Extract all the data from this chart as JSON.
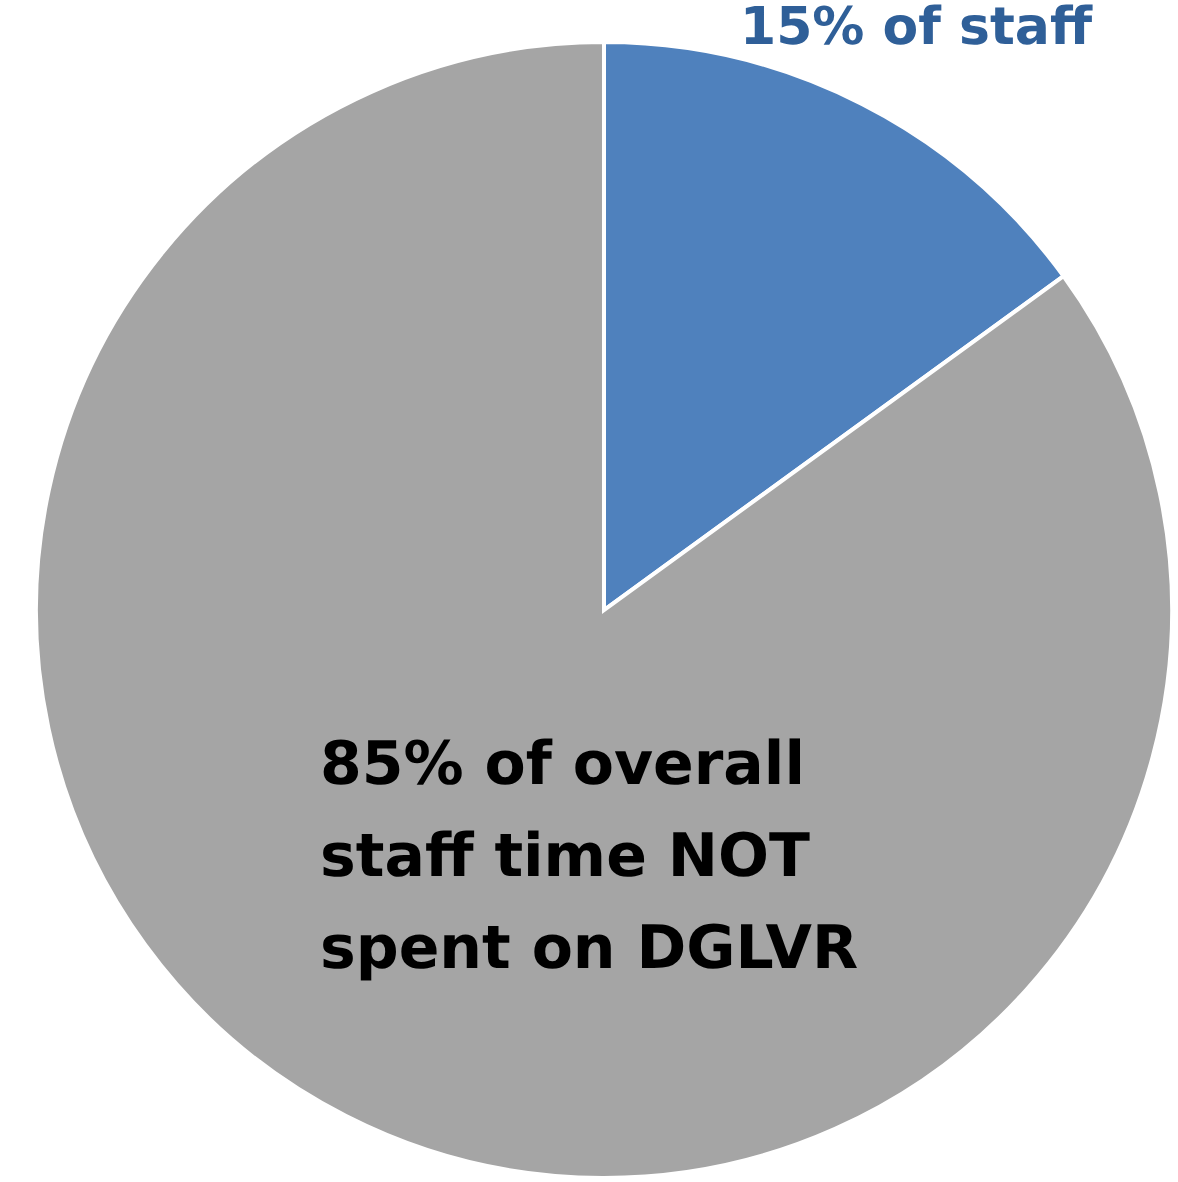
{
  "chart_data": {
    "type": "pie",
    "categories": [
      "15% of staff",
      "85% of overall staff time NOT spent on DGLVR"
    ],
    "values": [
      15,
      85
    ],
    "colors": [
      "#4f81bd",
      "#a5a5a5"
    ]
  }
}
